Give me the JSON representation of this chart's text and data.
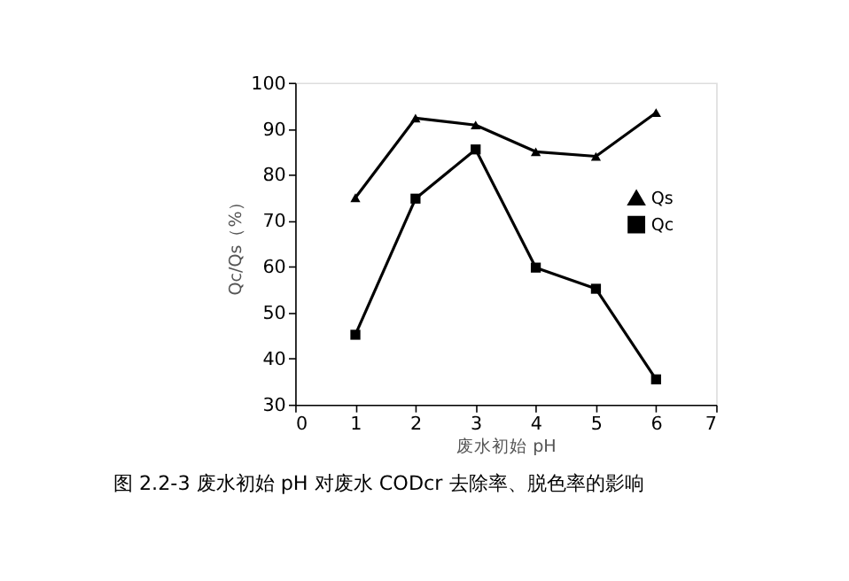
{
  "chart_data": {
    "type": "line",
    "title": "图 2.2-3 废水初始 pH 对废水 CODcr 去除率、脱色率的影响",
    "xlabel": "废水初始 pH",
    "ylabel": "Qc/Qs（%）",
    "x": [
      1,
      2,
      3,
      4,
      5,
      6
    ],
    "series": [
      {
        "name": "Qs",
        "color": "#000000",
        "marker": "triangle",
        "values": [
          75,
          92.3,
          90.8,
          85,
          84,
          93.5
        ]
      },
      {
        "name": "Qc",
        "color": "#000000",
        "marker": "square",
        "values": [
          45.2,
          74.8,
          85.5,
          59.8,
          55.2,
          35.5
        ]
      }
    ],
    "xlim": [
      0,
      7
    ],
    "xticks": [
      0,
      1,
      2,
      3,
      4,
      5,
      6,
      7
    ],
    "ylim": [
      30,
      100
    ],
    "yticks": [
      30,
      40,
      50,
      60,
      70,
      80,
      90,
      100
    ],
    "grid": false,
    "legend": "right",
    "line_style": "solid"
  }
}
